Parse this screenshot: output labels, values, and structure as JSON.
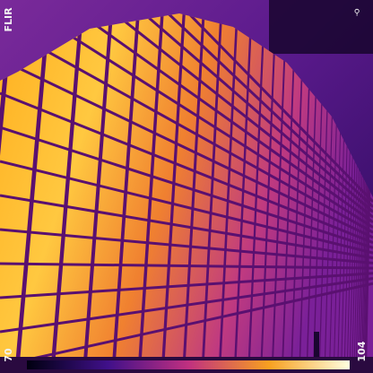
{
  "logo": "FLIR",
  "scale": {
    "min": 70,
    "max": 104
  }
}
